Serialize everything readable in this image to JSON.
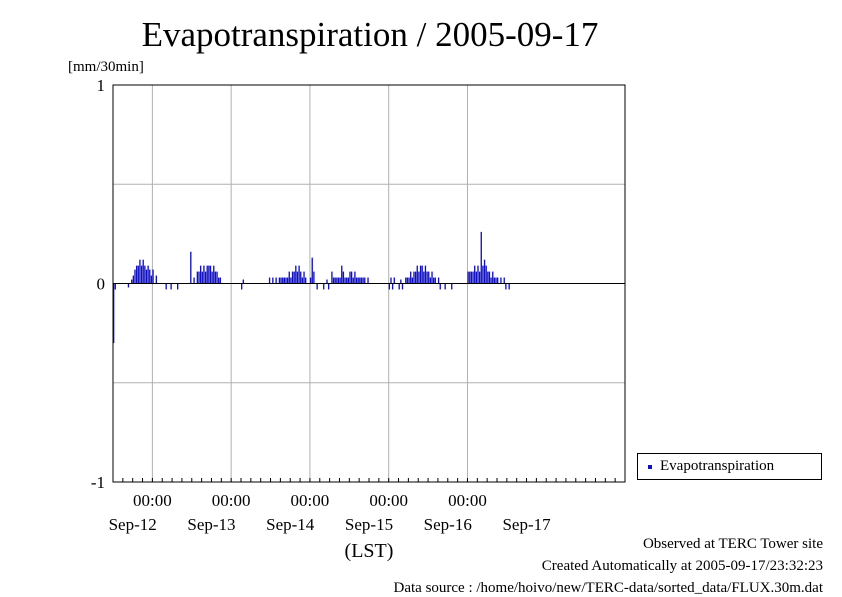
{
  "chart_data": {
    "type": "bar",
    "title": "Evapotranspiration / 2005-09-17",
    "ylabel": "[mm/30min]",
    "xlabel": "(LST)",
    "ylim": [
      -1,
      1
    ],
    "yticks": [
      -1,
      0,
      1
    ],
    "grid": true,
    "x_range": [
      "2005-09-11T12:00",
      "2005-09-17T24:00"
    ],
    "x_time_ticks": [
      "00:00",
      "00:00",
      "00:00",
      "00:00",
      "00:00"
    ],
    "x_date_labels": [
      "Sep-12",
      "Sep-13",
      "Sep-14",
      "Sep-15",
      "Sep-16",
      "Sep-17"
    ],
    "legend": {
      "position": "right",
      "entries": [
        "Evapotranspiration"
      ]
    },
    "series": [
      {
        "name": "Evapotranspiration",
        "color": "#1010c0",
        "points": [
          {
            "x": "2005-09-11T12:00",
            "y": -0.3
          },
          {
            "x": "2005-09-11T12:30",
            "y": -0.03
          },
          {
            "x": "2005-09-11T16:30",
            "y": -0.02
          },
          {
            "x": "2005-09-11T17:30",
            "y": 0.02
          },
          {
            "x": "2005-09-11T18:00",
            "y": 0.04
          },
          {
            "x": "2005-09-11T18:30",
            "y": 0.07
          },
          {
            "x": "2005-09-11T19:00",
            "y": 0.09
          },
          {
            "x": "2005-09-11T19:30",
            "y": 0.09
          },
          {
            "x": "2005-09-11T20:00",
            "y": 0.12
          },
          {
            "x": "2005-09-11T20:30",
            "y": 0.09
          },
          {
            "x": "2005-09-11T21:00",
            "y": 0.12
          },
          {
            "x": "2005-09-11T21:30",
            "y": 0.09
          },
          {
            "x": "2005-09-11T22:00",
            "y": 0.07
          },
          {
            "x": "2005-09-11T22:30",
            "y": 0.09
          },
          {
            "x": "2005-09-11T23:00",
            "y": 0.07
          },
          {
            "x": "2005-09-11T23:30",
            "y": 0.04
          },
          {
            "x": "2005-09-12T00:00",
            "y": 0.07
          },
          {
            "x": "2005-09-12T01:00",
            "y": 0.04
          },
          {
            "x": "2005-09-12T04:00",
            "y": -0.03
          },
          {
            "x": "2005-09-12T05:30",
            "y": -0.03
          },
          {
            "x": "2005-09-12T07:30",
            "y": -0.03
          },
          {
            "x": "2005-09-12T11:30",
            "y": 0.16
          },
          {
            "x": "2005-09-12T12:30",
            "y": 0.03
          },
          {
            "x": "2005-09-12T13:30",
            "y": 0.06
          },
          {
            "x": "2005-09-12T14:00",
            "y": 0.06
          },
          {
            "x": "2005-09-12T14:30",
            "y": 0.09
          },
          {
            "x": "2005-09-12T15:00",
            "y": 0.06
          },
          {
            "x": "2005-09-12T15:30",
            "y": 0.09
          },
          {
            "x": "2005-09-12T16:00",
            "y": 0.06
          },
          {
            "x": "2005-09-12T16:30",
            "y": 0.09
          },
          {
            "x": "2005-09-12T17:00",
            "y": 0.09
          },
          {
            "x": "2005-09-12T17:30",
            "y": 0.09
          },
          {
            "x": "2005-09-12T18:00",
            "y": 0.06
          },
          {
            "x": "2005-09-12T18:30",
            "y": 0.09
          },
          {
            "x": "2005-09-12T19:00",
            "y": 0.06
          },
          {
            "x": "2005-09-12T19:30",
            "y": 0.06
          },
          {
            "x": "2005-09-12T20:00",
            "y": 0.03
          },
          {
            "x": "2005-09-12T20:30",
            "y": 0.03
          },
          {
            "x": "2005-09-13T03:00",
            "y": -0.03
          },
          {
            "x": "2005-09-13T03:30",
            "y": 0.02
          },
          {
            "x": "2005-09-13T11:30",
            "y": 0.03
          },
          {
            "x": "2005-09-13T12:30",
            "y": 0.03
          },
          {
            "x": "2005-09-13T13:30",
            "y": 0.03
          },
          {
            "x": "2005-09-13T14:30",
            "y": 0.03
          },
          {
            "x": "2005-09-13T15:00",
            "y": 0.03
          },
          {
            "x": "2005-09-13T15:30",
            "y": 0.03
          },
          {
            "x": "2005-09-13T16:00",
            "y": 0.03
          },
          {
            "x": "2005-09-13T16:30",
            "y": 0.03
          },
          {
            "x": "2005-09-13T17:00",
            "y": 0.03
          },
          {
            "x": "2005-09-13T17:30",
            "y": 0.06
          },
          {
            "x": "2005-09-13T18:00",
            "y": 0.03
          },
          {
            "x": "2005-09-13T18:30",
            "y": 0.06
          },
          {
            "x": "2005-09-13T19:00",
            "y": 0.06
          },
          {
            "x": "2005-09-13T19:30",
            "y": 0.09
          },
          {
            "x": "2005-09-13T20:00",
            "y": 0.06
          },
          {
            "x": "2005-09-13T20:30",
            "y": 0.09
          },
          {
            "x": "2005-09-13T21:00",
            "y": 0.06
          },
          {
            "x": "2005-09-13T21:30",
            "y": 0.03
          },
          {
            "x": "2005-09-13T22:00",
            "y": 0.06
          },
          {
            "x": "2005-09-13T22:30",
            "y": 0.03
          },
          {
            "x": "2005-09-14T00:00",
            "y": 0.03
          },
          {
            "x": "2005-09-14T00:30",
            "y": 0.13
          },
          {
            "x": "2005-09-14T01:00",
            "y": 0.06
          },
          {
            "x": "2005-09-14T02:00",
            "y": -0.03
          },
          {
            "x": "2005-09-14T04:00",
            "y": -0.03
          },
          {
            "x": "2005-09-14T05:00",
            "y": 0.02
          },
          {
            "x": "2005-09-14T05:30",
            "y": -0.03
          },
          {
            "x": "2005-09-14T06:30",
            "y": 0.06
          },
          {
            "x": "2005-09-14T07:00",
            "y": 0.03
          },
          {
            "x": "2005-09-14T07:30",
            "y": 0.03
          },
          {
            "x": "2005-09-14T08:00",
            "y": 0.03
          },
          {
            "x": "2005-09-14T08:30",
            "y": 0.03
          },
          {
            "x": "2005-09-14T09:00",
            "y": 0.03
          },
          {
            "x": "2005-09-14T09:30",
            "y": 0.09
          },
          {
            "x": "2005-09-14T10:00",
            "y": 0.06
          },
          {
            "x": "2005-09-14T10:30",
            "y": 0.03
          },
          {
            "x": "2005-09-14T11:00",
            "y": 0.03
          },
          {
            "x": "2005-09-14T11:30",
            "y": 0.03
          },
          {
            "x": "2005-09-14T12:00",
            "y": 0.06
          },
          {
            "x": "2005-09-14T12:30",
            "y": 0.06
          },
          {
            "x": "2005-09-14T13:00",
            "y": 0.03
          },
          {
            "x": "2005-09-14T13:30",
            "y": 0.06
          },
          {
            "x": "2005-09-14T14:00",
            "y": 0.03
          },
          {
            "x": "2005-09-14T14:30",
            "y": 0.03
          },
          {
            "x": "2005-09-14T15:00",
            "y": 0.03
          },
          {
            "x": "2005-09-14T15:30",
            "y": 0.03
          },
          {
            "x": "2005-09-14T16:00",
            "y": 0.03
          },
          {
            "x": "2005-09-14T16:30",
            "y": 0.03
          },
          {
            "x": "2005-09-14T17:30",
            "y": 0.03
          },
          {
            "x": "2005-09-15T00:00",
            "y": -0.03
          },
          {
            "x": "2005-09-15T00:30",
            "y": 0.03
          },
          {
            "x": "2005-09-15T01:00",
            "y": -0.03
          },
          {
            "x": "2005-09-15T01:30",
            "y": 0.03
          },
          {
            "x": "2005-09-15T03:00",
            "y": -0.03
          },
          {
            "x": "2005-09-15T03:30",
            "y": 0.02
          },
          {
            "x": "2005-09-15T04:00",
            "y": -0.03
          },
          {
            "x": "2005-09-15T05:00",
            "y": 0.03
          },
          {
            "x": "2005-09-15T05:30",
            "y": 0.03
          },
          {
            "x": "2005-09-15T06:00",
            "y": 0.03
          },
          {
            "x": "2005-09-15T06:30",
            "y": 0.06
          },
          {
            "x": "2005-09-15T07:00",
            "y": 0.03
          },
          {
            "x": "2005-09-15T07:30",
            "y": 0.06
          },
          {
            "x": "2005-09-15T08:00",
            "y": 0.06
          },
          {
            "x": "2005-09-15T08:30",
            "y": 0.09
          },
          {
            "x": "2005-09-15T09:00",
            "y": 0.06
          },
          {
            "x": "2005-09-15T09:30",
            "y": 0.09
          },
          {
            "x": "2005-09-15T10:00",
            "y": 0.09
          },
          {
            "x": "2005-09-15T10:30",
            "y": 0.06
          },
          {
            "x": "2005-09-15T11:00",
            "y": 0.09
          },
          {
            "x": "2005-09-15T11:30",
            "y": 0.06
          },
          {
            "x": "2005-09-15T12:00",
            "y": 0.06
          },
          {
            "x": "2005-09-15T12:30",
            "y": 0.03
          },
          {
            "x": "2005-09-15T13:00",
            "y": 0.06
          },
          {
            "x": "2005-09-15T13:30",
            "y": 0.03
          },
          {
            "x": "2005-09-15T14:00",
            "y": 0.03
          },
          {
            "x": "2005-09-15T15:00",
            "y": 0.03
          },
          {
            "x": "2005-09-15T15:30",
            "y": -0.03
          },
          {
            "x": "2005-09-15T17:00",
            "y": -0.03
          },
          {
            "x": "2005-09-15T19:00",
            "y": -0.03
          },
          {
            "x": "2005-09-16T00:00",
            "y": 0.06
          },
          {
            "x": "2005-09-16T00:30",
            "y": 0.06
          },
          {
            "x": "2005-09-16T01:00",
            "y": 0.06
          },
          {
            "x": "2005-09-16T01:30",
            "y": 0.06
          },
          {
            "x": "2005-09-16T02:00",
            "y": 0.09
          },
          {
            "x": "2005-09-16T02:30",
            "y": 0.06
          },
          {
            "x": "2005-09-16T03:00",
            "y": 0.09
          },
          {
            "x": "2005-09-16T03:30",
            "y": 0.06
          },
          {
            "x": "2005-09-16T04:00",
            "y": 0.26
          },
          {
            "x": "2005-09-16T04:30",
            "y": 0.09
          },
          {
            "x": "2005-09-16T05:00",
            "y": 0.12
          },
          {
            "x": "2005-09-16T05:30",
            "y": 0.09
          },
          {
            "x": "2005-09-16T06:00",
            "y": 0.06
          },
          {
            "x": "2005-09-16T06:30",
            "y": 0.06
          },
          {
            "x": "2005-09-16T07:00",
            "y": 0.03
          },
          {
            "x": "2005-09-16T07:30",
            "y": 0.06
          },
          {
            "x": "2005-09-16T08:00",
            "y": 0.03
          },
          {
            "x": "2005-09-16T08:30",
            "y": 0.03
          },
          {
            "x": "2005-09-16T09:00",
            "y": 0.03
          },
          {
            "x": "2005-09-16T10:00",
            "y": 0.03
          },
          {
            "x": "2005-09-16T11:00",
            "y": 0.03
          },
          {
            "x": "2005-09-16T11:30",
            "y": -0.03
          },
          {
            "x": "2005-09-16T12:30",
            "y": -0.03
          }
        ]
      }
    ]
  },
  "footer": {
    "observed": "Observed at TERC Tower site",
    "created": "Created Automatically at 2005-09-17/23:32:23",
    "source": "Data source : /home/hoivo/new/TERC-data/sorted_data/FLUX.30m.dat"
  }
}
